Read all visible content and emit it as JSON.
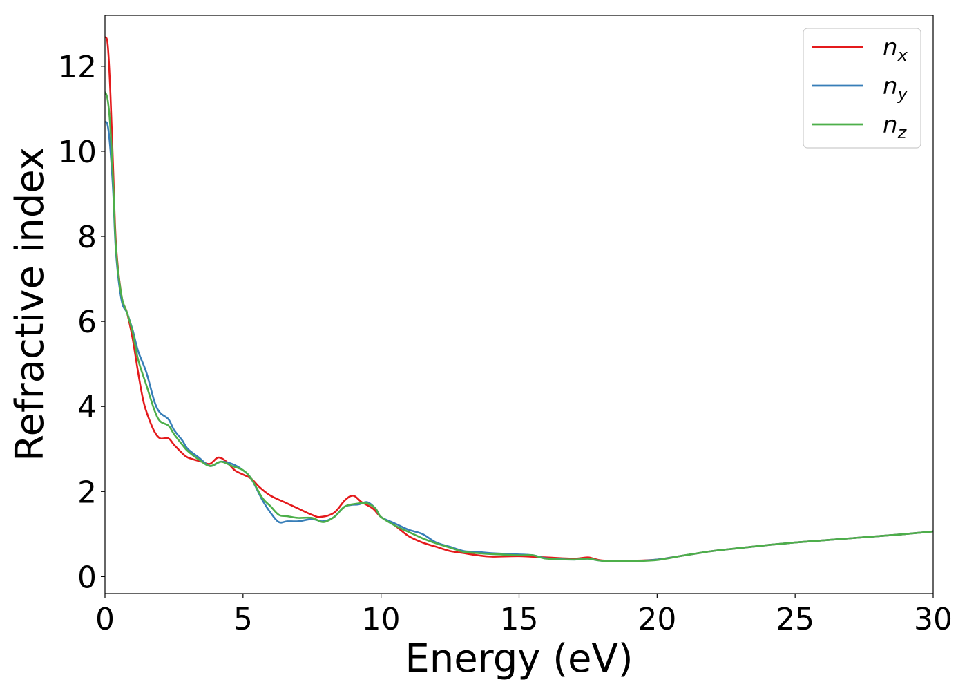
{
  "chart_data": {
    "type": "line",
    "title": "",
    "xlabel": "Energy (eV)",
    "ylabel": "Refractive index",
    "xlim": [
      0,
      30
    ],
    "ylim": [
      -0.4,
      13.2
    ],
    "xticks": [
      0,
      5,
      10,
      15,
      20,
      25,
      30
    ],
    "yticks": [
      0,
      2,
      4,
      6,
      8,
      10,
      12
    ],
    "grid": false,
    "legend_position": "top-right",
    "series": [
      {
        "name": "n",
        "subscript": "x",
        "color": "#e41a1c",
        "points": [
          [
            0,
            12.7
          ],
          [
            0.1,
            12.5
          ],
          [
            0.2,
            11.3
          ],
          [
            0.3,
            9.5
          ],
          [
            0.4,
            7.8
          ],
          [
            0.6,
            6.6
          ],
          [
            0.8,
            6.2
          ],
          [
            1.0,
            5.6
          ],
          [
            1.2,
            4.8
          ],
          [
            1.4,
            4.1
          ],
          [
            1.6,
            3.7
          ],
          [
            1.8,
            3.4
          ],
          [
            2.0,
            3.25
          ],
          [
            2.3,
            3.25
          ],
          [
            2.5,
            3.1
          ],
          [
            2.8,
            2.9
          ],
          [
            3.0,
            2.8
          ],
          [
            3.5,
            2.7
          ],
          [
            3.8,
            2.65
          ],
          [
            4.1,
            2.8
          ],
          [
            4.4,
            2.7
          ],
          [
            4.7,
            2.5
          ],
          [
            5.0,
            2.4
          ],
          [
            5.3,
            2.3
          ],
          [
            5.6,
            2.1
          ],
          [
            6.0,
            1.9
          ],
          [
            6.5,
            1.75
          ],
          [
            7.0,
            1.6
          ],
          [
            7.5,
            1.45
          ],
          [
            7.8,
            1.4
          ],
          [
            8.3,
            1.5
          ],
          [
            8.7,
            1.8
          ],
          [
            9.0,
            1.9
          ],
          [
            9.3,
            1.75
          ],
          [
            9.7,
            1.6
          ],
          [
            10.0,
            1.4
          ],
          [
            10.5,
            1.2
          ],
          [
            11.0,
            0.95
          ],
          [
            11.5,
            0.8
          ],
          [
            12.0,
            0.7
          ],
          [
            12.5,
            0.6
          ],
          [
            13.0,
            0.55
          ],
          [
            13.5,
            0.5
          ],
          [
            14.0,
            0.47
          ],
          [
            15.0,
            0.48
          ],
          [
            16.0,
            0.45
          ],
          [
            17.0,
            0.42
          ],
          [
            17.5,
            0.45
          ],
          [
            18.0,
            0.38
          ],
          [
            19.0,
            0.37
          ],
          [
            20.0,
            0.4
          ],
          [
            21.0,
            0.5
          ],
          [
            22.0,
            0.6
          ],
          [
            23.0,
            0.67
          ],
          [
            24.0,
            0.74
          ],
          [
            25.0,
            0.8
          ],
          [
            26.0,
            0.85
          ],
          [
            27.0,
            0.9
          ],
          [
            28.0,
            0.95
          ],
          [
            29.0,
            1.0
          ],
          [
            30.0,
            1.06
          ]
        ]
      },
      {
        "name": "n",
        "subscript": "y",
        "color": "#377eb8",
        "points": [
          [
            0,
            10.7
          ],
          [
            0.1,
            10.6
          ],
          [
            0.2,
            10.0
          ],
          [
            0.3,
            9.0
          ],
          [
            0.4,
            7.6
          ],
          [
            0.6,
            6.5
          ],
          [
            0.8,
            6.2
          ],
          [
            1.0,
            5.8
          ],
          [
            1.2,
            5.3
          ],
          [
            1.5,
            4.8
          ],
          [
            1.8,
            4.1
          ],
          [
            2.0,
            3.85
          ],
          [
            2.3,
            3.7
          ],
          [
            2.5,
            3.45
          ],
          [
            2.8,
            3.2
          ],
          [
            3.0,
            3.0
          ],
          [
            3.4,
            2.8
          ],
          [
            3.8,
            2.6
          ],
          [
            4.2,
            2.7
          ],
          [
            4.6,
            2.65
          ],
          [
            5.0,
            2.5
          ],
          [
            5.3,
            2.3
          ],
          [
            5.7,
            1.8
          ],
          [
            6.0,
            1.5
          ],
          [
            6.3,
            1.28
          ],
          [
            6.6,
            1.3
          ],
          [
            7.0,
            1.3
          ],
          [
            7.5,
            1.35
          ],
          [
            7.9,
            1.3
          ],
          [
            8.3,
            1.4
          ],
          [
            8.7,
            1.65
          ],
          [
            9.2,
            1.7
          ],
          [
            9.5,
            1.75
          ],
          [
            9.8,
            1.6
          ],
          [
            10.0,
            1.4
          ],
          [
            10.5,
            1.25
          ],
          [
            11.0,
            1.1
          ],
          [
            11.5,
            1.0
          ],
          [
            12.0,
            0.8
          ],
          [
            12.5,
            0.7
          ],
          [
            13.0,
            0.6
          ],
          [
            13.5,
            0.58
          ],
          [
            14.0,
            0.55
          ],
          [
            15.0,
            0.52
          ],
          [
            15.5,
            0.5
          ],
          [
            16.0,
            0.43
          ],
          [
            17.0,
            0.4
          ],
          [
            17.5,
            0.42
          ],
          [
            18.0,
            0.37
          ],
          [
            19.0,
            0.36
          ],
          [
            20.0,
            0.4
          ],
          [
            21.0,
            0.5
          ],
          [
            22.0,
            0.6
          ],
          [
            23.0,
            0.67
          ],
          [
            24.0,
            0.74
          ],
          [
            25.0,
            0.8
          ],
          [
            26.0,
            0.85
          ],
          [
            27.0,
            0.9
          ],
          [
            28.0,
            0.95
          ],
          [
            29.0,
            1.0
          ],
          [
            30.0,
            1.06
          ]
        ]
      },
      {
        "name": "n",
        "subscript": "z",
        "color": "#4daf4a",
        "points": [
          [
            0,
            11.4
          ],
          [
            0.1,
            11.2
          ],
          [
            0.2,
            10.5
          ],
          [
            0.3,
            9.2
          ],
          [
            0.4,
            7.7
          ],
          [
            0.6,
            6.6
          ],
          [
            0.8,
            6.2
          ],
          [
            1.0,
            5.75
          ],
          [
            1.2,
            5.1
          ],
          [
            1.5,
            4.5
          ],
          [
            1.8,
            3.9
          ],
          [
            2.0,
            3.65
          ],
          [
            2.3,
            3.55
          ],
          [
            2.5,
            3.35
          ],
          [
            2.8,
            3.1
          ],
          [
            3.0,
            2.95
          ],
          [
            3.4,
            2.75
          ],
          [
            3.8,
            2.6
          ],
          [
            4.2,
            2.7
          ],
          [
            4.6,
            2.6
          ],
          [
            5.0,
            2.5
          ],
          [
            5.3,
            2.3
          ],
          [
            5.7,
            1.85
          ],
          [
            6.0,
            1.65
          ],
          [
            6.3,
            1.45
          ],
          [
            6.6,
            1.42
          ],
          [
            7.0,
            1.38
          ],
          [
            7.5,
            1.38
          ],
          [
            7.9,
            1.28
          ],
          [
            8.3,
            1.4
          ],
          [
            8.7,
            1.65
          ],
          [
            9.2,
            1.72
          ],
          [
            9.5,
            1.72
          ],
          [
            9.8,
            1.6
          ],
          [
            10.0,
            1.4
          ],
          [
            10.5,
            1.2
          ],
          [
            11.0,
            1.05
          ],
          [
            11.5,
            0.9
          ],
          [
            12.0,
            0.78
          ],
          [
            12.5,
            0.68
          ],
          [
            13.0,
            0.58
          ],
          [
            13.5,
            0.55
          ],
          [
            14.0,
            0.53
          ],
          [
            15.0,
            0.5
          ],
          [
            15.5,
            0.5
          ],
          [
            16.0,
            0.42
          ],
          [
            17.0,
            0.4
          ],
          [
            17.5,
            0.42
          ],
          [
            18.0,
            0.37
          ],
          [
            19.0,
            0.36
          ],
          [
            20.0,
            0.39
          ],
          [
            21.0,
            0.5
          ],
          [
            22.0,
            0.6
          ],
          [
            23.0,
            0.67
          ],
          [
            24.0,
            0.74
          ],
          [
            25.0,
            0.8
          ],
          [
            26.0,
            0.85
          ],
          [
            27.0,
            0.9
          ],
          [
            28.0,
            0.95
          ],
          [
            29.0,
            1.0
          ],
          [
            30.0,
            1.06
          ]
        ]
      }
    ]
  }
}
